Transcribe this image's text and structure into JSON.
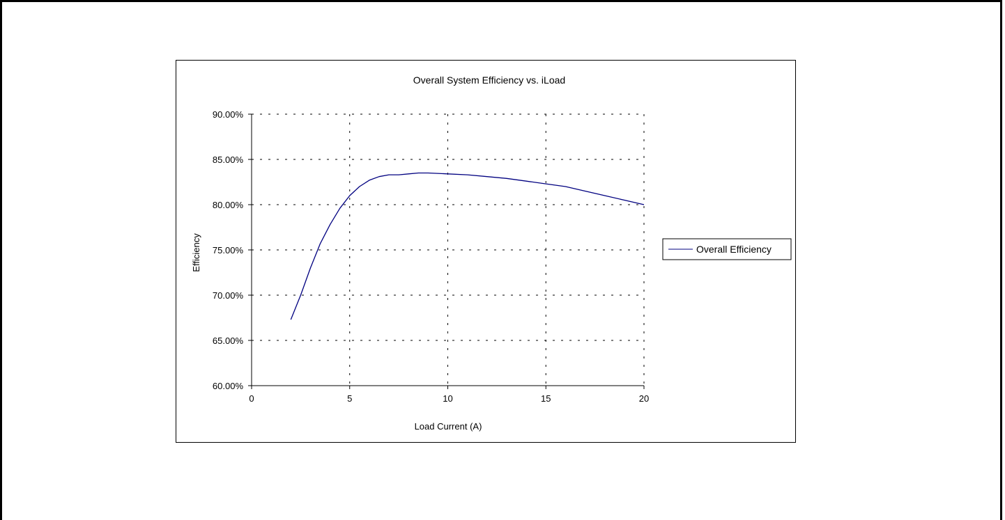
{
  "chart_data": {
    "type": "line",
    "title": "Overall System Efficiency vs. iLoad",
    "xlabel": "Load Current (A)",
    "ylabel": "Efficiency",
    "xlim": [
      0,
      20
    ],
    "ylim": [
      0.6,
      0.9
    ],
    "x_ticks": [
      0,
      5,
      10,
      15,
      20
    ],
    "x_tick_labels": [
      "0",
      "5",
      "10",
      "15",
      "20"
    ],
    "y_ticks": [
      0.6,
      0.65,
      0.7,
      0.75,
      0.8,
      0.85,
      0.9
    ],
    "y_tick_labels": [
      "60.00%",
      "65.00%",
      "70.00%",
      "75.00%",
      "80.00%",
      "85.00%",
      "90.00%"
    ],
    "grid": true,
    "grid_style": "dashed",
    "legend_position": "right",
    "series": [
      {
        "name": "Overall Efficiency",
        "color": "#000080",
        "x": [
          2,
          2.5,
          3,
          3.5,
          4,
          4.5,
          5,
          5.5,
          6,
          6.5,
          7,
          7.5,
          8,
          8.5,
          9,
          10,
          11,
          12,
          13,
          14,
          15,
          16,
          17,
          18,
          19,
          20
        ],
        "y": [
          0.673,
          0.7,
          0.73,
          0.757,
          0.778,
          0.796,
          0.81,
          0.82,
          0.827,
          0.831,
          0.833,
          0.833,
          0.834,
          0.835,
          0.835,
          0.834,
          0.833,
          0.831,
          0.829,
          0.826,
          0.823,
          0.82,
          0.815,
          0.81,
          0.805,
          0.8
        ]
      }
    ]
  }
}
